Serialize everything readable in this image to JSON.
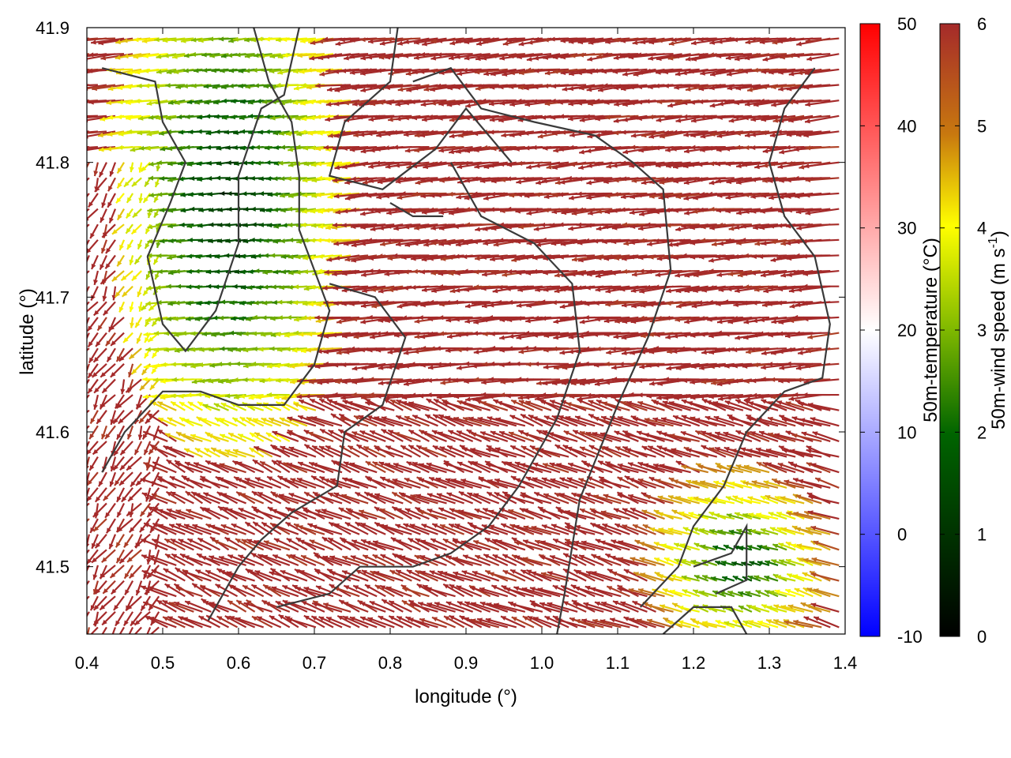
{
  "chart_data": {
    "type": "vector-field",
    "xlabel": "longitude (°)",
    "ylabel": "latitude (°)",
    "xlim": [
      0.4,
      1.4
    ],
    "ylim": [
      41.45,
      41.9
    ],
    "x_ticks": [
      "0.4",
      "0.5",
      "0.6",
      "0.7",
      "0.8",
      "0.9",
      "1.0",
      "1.1",
      "1.2",
      "1.3",
      "1.4"
    ],
    "y_ticks": [
      "41.5",
      "41.6",
      "41.7",
      "41.8",
      "41.9"
    ],
    "arrow_color_field": "50m-wind speed",
    "arrow_direction": "mostly westward to north-westward, 4-6 m s-1 over most of the domain; weak (0-3 m s-1) winds in the north-west basin and south-east corner",
    "colorbars": [
      {
        "name": "temperature",
        "label": "50m-temperature (°C)",
        "range": [
          -10,
          50
        ],
        "ticks": [
          "50",
          "40",
          "30",
          "20",
          "10",
          "0",
          "-10"
        ],
        "colors": [
          "#ff0000",
          "#ffffff",
          "#0000ff"
        ]
      },
      {
        "name": "windspeed",
        "label_main": "50m-wind speed (m s",
        "label_sup": "-1",
        "label_end": ")",
        "range": [
          0,
          6
        ],
        "ticks": [
          "6",
          "5",
          "4",
          "3",
          "2",
          "1",
          "0"
        ],
        "colors": [
          "#a52a2a",
          "#d4a017",
          "#ffff00",
          "#7fb800",
          "#006400",
          "#000000"
        ]
      }
    ],
    "contour_color": "#3a3a3a",
    "grid": false
  }
}
